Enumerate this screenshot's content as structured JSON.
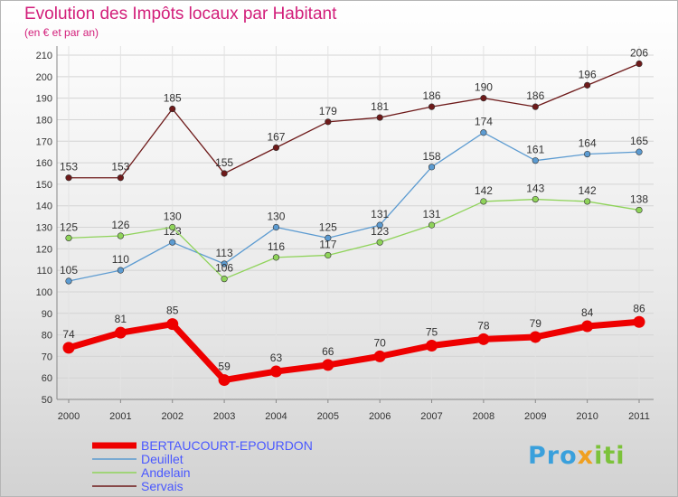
{
  "chart_data": {
    "type": "line",
    "title": "Evolution des Impôts locaux par Habitant",
    "subtitle": "(en € et par an)",
    "xlabel": "",
    "ylabel": "",
    "x": [
      "2000",
      "2001",
      "2002",
      "2003",
      "2004",
      "2005",
      "2006",
      "2007",
      "2008",
      "2009",
      "2010",
      "2011"
    ],
    "ylim": [
      50,
      210
    ],
    "yticks": [
      50,
      60,
      70,
      80,
      90,
      100,
      110,
      120,
      130,
      140,
      150,
      160,
      170,
      180,
      190,
      200,
      210
    ],
    "grid": true,
    "legend_position": "bottom-left",
    "series": [
      {
        "name": "Servais",
        "color": "#6e1a1a",
        "values": [
          153,
          153,
          185,
          155,
          167,
          179,
          181,
          186,
          190,
          186,
          196,
          206
        ]
      },
      {
        "name": "Deuillet",
        "color": "#5c9bd1",
        "values": [
          105,
          110,
          123,
          113,
          130,
          125,
          131,
          158,
          174,
          161,
          164,
          165
        ]
      },
      {
        "name": "Andelain",
        "color": "#8fd35a",
        "values": [
          125,
          126,
          130,
          106,
          116,
          117,
          123,
          131,
          142,
          143,
          142,
          138
        ]
      },
      {
        "name": "BERTAUCOURT-EPOURDON",
        "color": "#ee0000",
        "values": [
          74,
          81,
          85,
          59,
          63,
          66,
          70,
          75,
          78,
          79,
          84,
          86
        ]
      }
    ]
  },
  "legend_order": [
    "BERTAUCOURT-EPOURDON",
    "Deuillet",
    "Andelain",
    "Servais"
  ],
  "logo": {
    "part1": "Pro",
    "part2": "x",
    "part3": "iti"
  }
}
